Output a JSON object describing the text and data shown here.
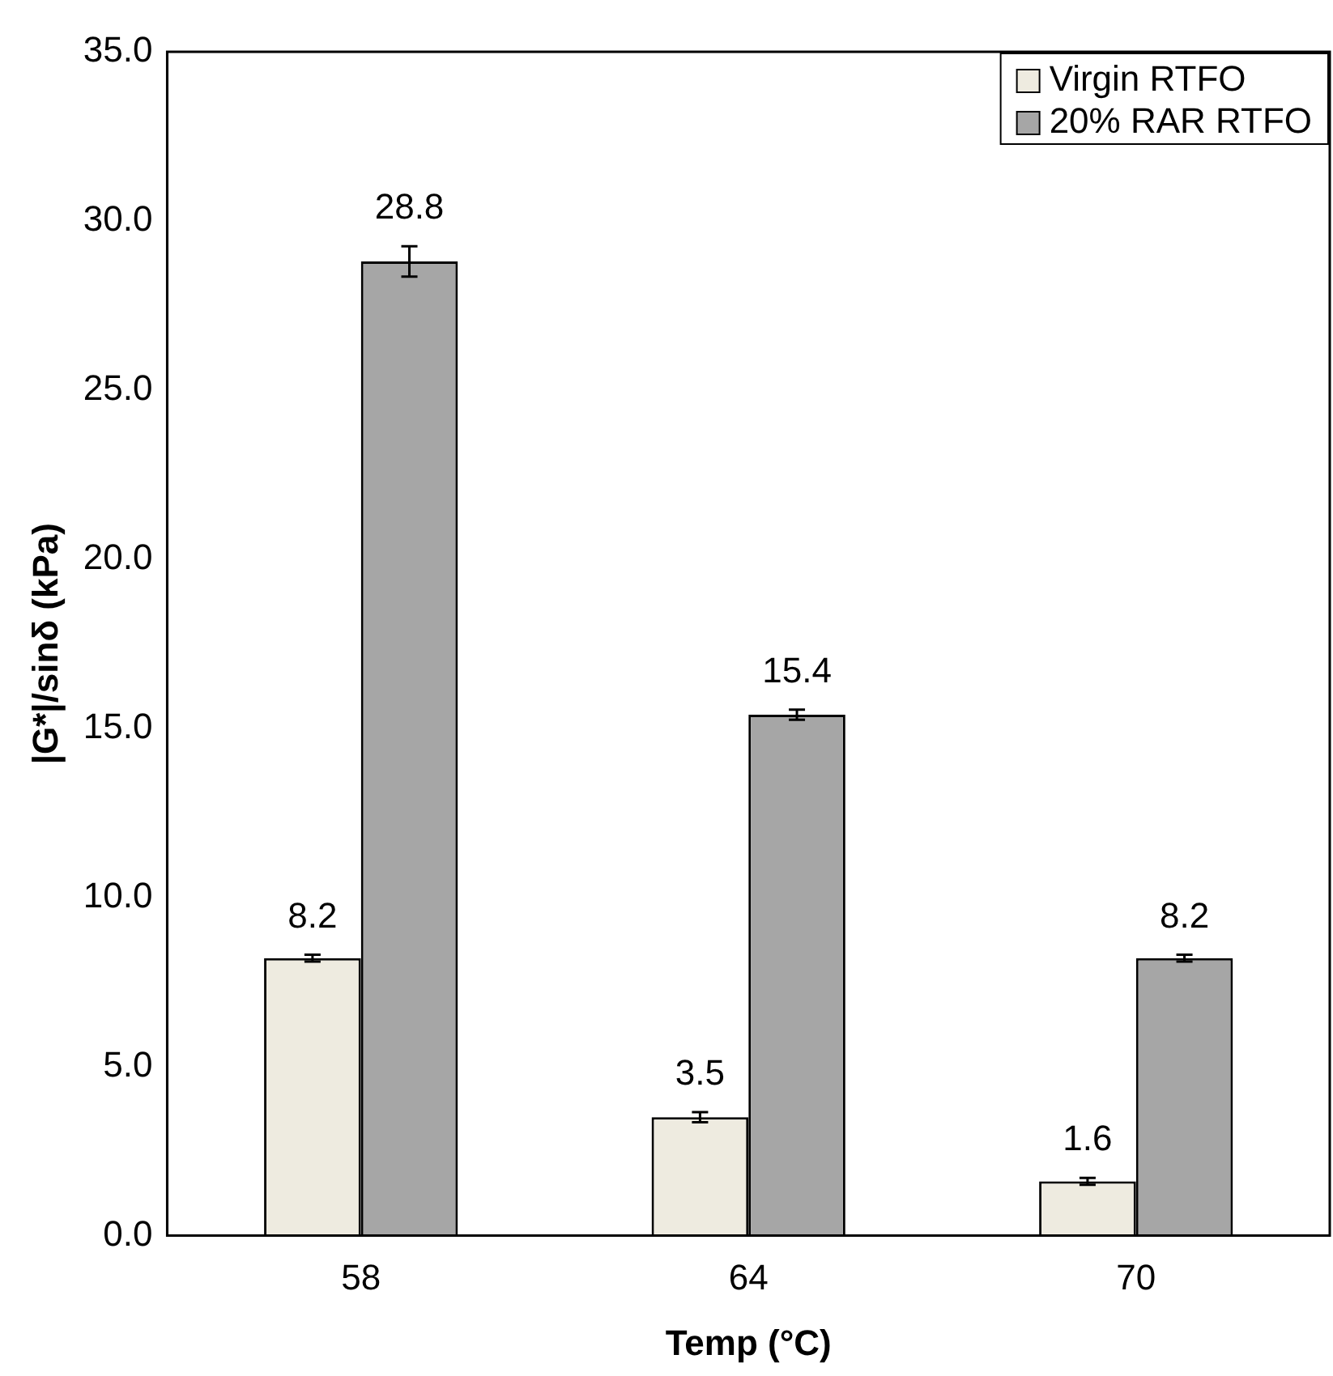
{
  "chart_data": {
    "type": "bar",
    "xlabel": "Temp (°C)",
    "ylabel": "|G*|/sinδ (kPa)",
    "categories": [
      "58",
      "64",
      "70"
    ],
    "series": [
      {
        "name": "Virgin RTFO",
        "color": "#eeebe0",
        "values": [
          8.2,
          3.5,
          1.6
        ],
        "errors": [
          0.1,
          0.15,
          0.1
        ]
      },
      {
        "name": "20% RAR RTFO",
        "color": "#a6a6a6",
        "values": [
          28.8,
          15.4,
          8.2
        ],
        "errors": [
          0.45,
          0.15,
          0.1
        ]
      }
    ],
    "ylim": [
      0,
      35
    ],
    "yticks": [
      {
        "value": 0,
        "label": "0.0"
      },
      {
        "value": 5,
        "label": "5.0"
      },
      {
        "value": 10,
        "label": "10.0"
      },
      {
        "value": 15,
        "label": "15.0"
      },
      {
        "value": 20,
        "label": "20.0"
      },
      {
        "value": 25,
        "label": "25.0"
      },
      {
        "value": 30,
        "label": "30.0"
      },
      {
        "value": 35,
        "label": "35.0"
      }
    ],
    "grid": false,
    "legend": "top right",
    "data_labels": true
  }
}
